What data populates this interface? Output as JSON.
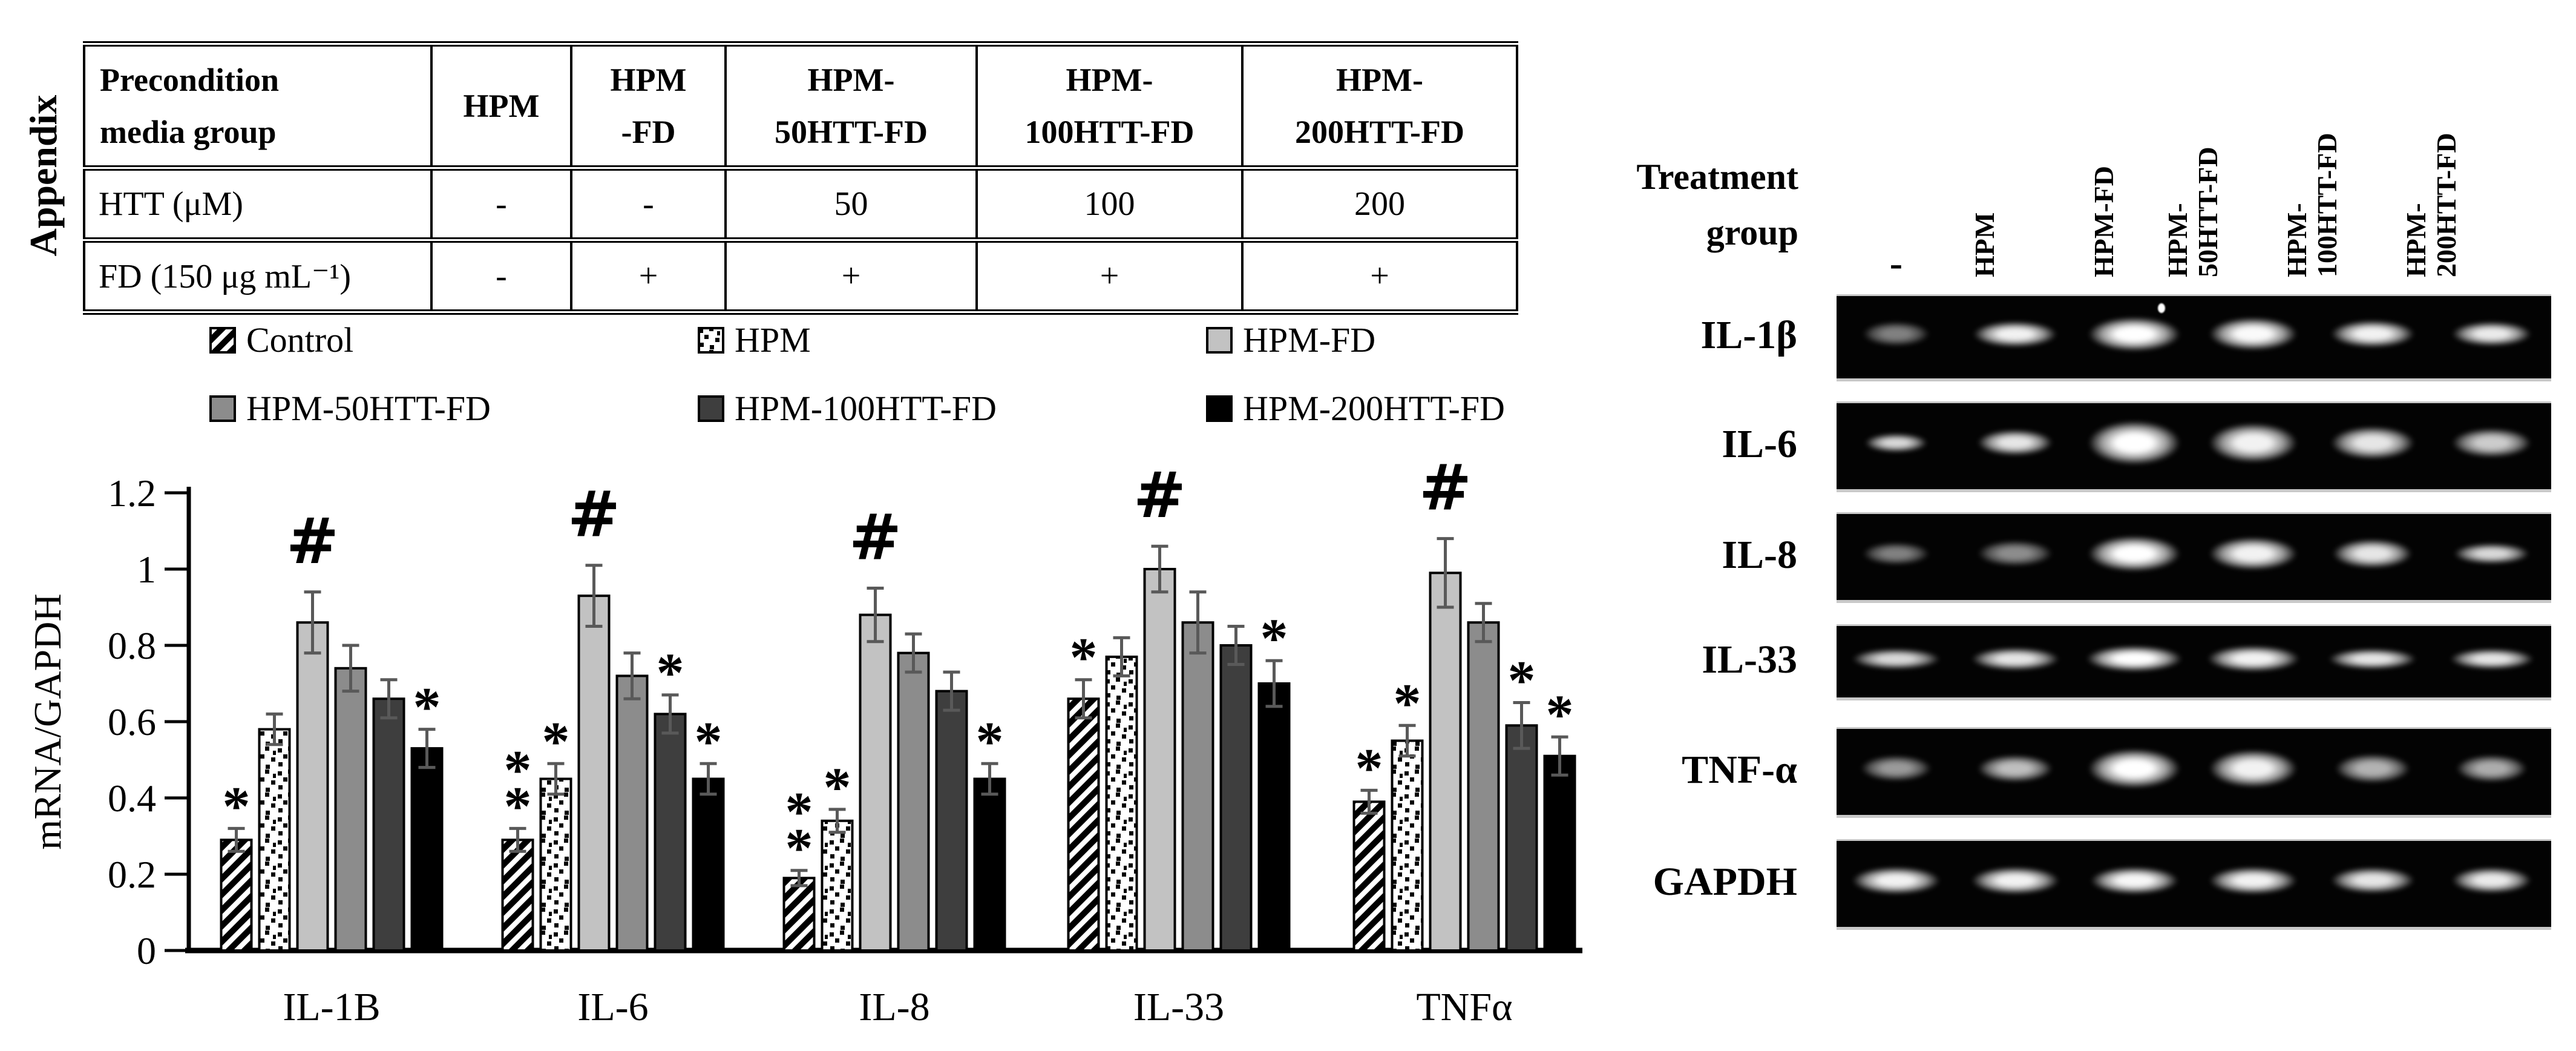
{
  "figure": {
    "appendix_label": "Appendix"
  },
  "table": {
    "corner": [
      "Precondition",
      "media group"
    ],
    "col_headers": [
      [
        "HPM"
      ],
      [
        "HPM",
        "-FD"
      ],
      [
        "HPM-",
        "50HTT-FD"
      ],
      [
        "HPM-",
        "100HTT-FD"
      ],
      [
        "HPM-",
        "200HTT-FD"
      ]
    ],
    "rows": [
      {
        "label": "HTT (μM)",
        "values": [
          "-",
          "-",
          "50",
          "100",
          "200"
        ]
      },
      {
        "label": "FD (150 μg mL⁻¹)",
        "values": [
          "-",
          "+",
          "+",
          "+",
          "+"
        ]
      }
    ]
  },
  "chart_data": {
    "type": "bar",
    "title": "",
    "xlabel": "",
    "ylabel": "mRNA/GAPDH",
    "ylim": [
      0,
      1.2
    ],
    "yticks": [
      0,
      0.2,
      0.4,
      0.6,
      0.8,
      1,
      1.2
    ],
    "grid": false,
    "legend_position": "top",
    "colors": {
      "error_bar": "#595959",
      "bar_outline": "#000000"
    },
    "categories": [
      "IL-1B",
      "IL-6",
      "IL-8",
      "IL-33",
      "TNFα"
    ],
    "series": [
      {
        "name": "Control",
        "fill": "hatch",
        "values": [
          0.29,
          0.29,
          0.19,
          0.66,
          0.39
        ],
        "errors": [
          0.03,
          0.03,
          0.02,
          0.05,
          0.03
        ],
        "annotations": [
          "*",
          "**",
          "**",
          "*",
          "*"
        ]
      },
      {
        "name": "HPM",
        "fill": "dots",
        "values": [
          0.58,
          0.45,
          0.34,
          0.77,
          0.55
        ],
        "errors": [
          0.04,
          0.04,
          0.03,
          0.05,
          0.04
        ],
        "annotations": [
          "",
          "*",
          "*",
          "",
          "*"
        ]
      },
      {
        "name": "HPM-FD",
        "fill": "#c2c2c2",
        "values": [
          0.86,
          0.93,
          0.88,
          1.0,
          0.99
        ],
        "errors": [
          0.08,
          0.08,
          0.07,
          0.06,
          0.09
        ],
        "annotations": [
          "#",
          "#",
          "#",
          "#",
          "#"
        ]
      },
      {
        "name": "HPM-50HTT-FD",
        "fill": "#8c8c8c",
        "values": [
          0.74,
          0.72,
          0.78,
          0.86,
          0.86
        ],
        "errors": [
          0.06,
          0.06,
          0.05,
          0.08,
          0.05
        ],
        "annotations": [
          "",
          "",
          "",
          "",
          ""
        ]
      },
      {
        "name": "HPM-100HTT-FD",
        "fill": "#3e3e3e",
        "values": [
          0.66,
          0.62,
          0.68,
          0.8,
          0.59
        ],
        "errors": [
          0.05,
          0.05,
          0.05,
          0.05,
          0.06
        ],
        "annotations": [
          "",
          "*",
          "",
          "",
          "*"
        ]
      },
      {
        "name": "HPM-200HTT-FD",
        "fill": "#000000",
        "values": [
          0.53,
          0.45,
          0.45,
          0.7,
          0.51
        ],
        "errors": [
          0.05,
          0.04,
          0.04,
          0.06,
          0.05
        ],
        "annotations": [
          "*",
          "*",
          "*",
          "*",
          "*"
        ]
      }
    ]
  },
  "gel": {
    "treatment_group_label": [
      "Treatment",
      "group"
    ],
    "lane_labels": [
      [
        "-"
      ],
      [
        "HPM"
      ],
      [
        "HPM-FD"
      ],
      [
        "HPM-",
        "50HTT-FD"
      ],
      [
        "HPM-",
        "100HTT-FD"
      ],
      [
        "HPM-",
        "200HTT-FD"
      ]
    ],
    "rows": [
      {
        "label": "IL-1β",
        "bands": [
          [
            0.8,
            0.7,
            0.5
          ],
          [
            1.0,
            0.75,
            0.95
          ],
          [
            1.1,
            1.0,
            1.0
          ],
          [
            1.05,
            0.95,
            0.98
          ],
          [
            1.0,
            0.8,
            0.95
          ],
          [
            0.95,
            0.7,
            0.92
          ]
        ]
      },
      {
        "label": "IL-6",
        "bands": [
          [
            0.75,
            0.55,
            0.85
          ],
          [
            0.9,
            0.75,
            0.9
          ],
          [
            1.1,
            1.3,
            1.0
          ],
          [
            1.05,
            1.15,
            0.95
          ],
          [
            1.0,
            0.95,
            0.9
          ],
          [
            0.95,
            0.85,
            0.8
          ]
        ]
      },
      {
        "label": "IL-8",
        "bands": [
          [
            0.8,
            0.65,
            0.5
          ],
          [
            0.9,
            0.75,
            0.55
          ],
          [
            1.1,
            1.05,
            1.0
          ],
          [
            1.05,
            0.95,
            0.95
          ],
          [
            0.95,
            0.85,
            0.9
          ],
          [
            0.9,
            0.6,
            0.85
          ]
        ]
      },
      {
        "label": "IL-33",
        "bands": [
          [
            1.05,
            0.6,
            0.85
          ],
          [
            1.05,
            0.65,
            0.9
          ],
          [
            1.15,
            0.75,
            1.0
          ],
          [
            1.1,
            0.75,
            0.95
          ],
          [
            1.05,
            0.6,
            0.9
          ],
          [
            1.0,
            0.6,
            0.9
          ]
        ]
      },
      {
        "label": "TNF-α",
        "bands": [
          [
            0.85,
            0.75,
            0.6
          ],
          [
            0.9,
            0.8,
            0.75
          ],
          [
            1.1,
            1.15,
            1.0
          ],
          [
            1.05,
            1.1,
            0.95
          ],
          [
            0.9,
            0.85,
            0.7
          ],
          [
            0.85,
            0.8,
            0.68
          ]
        ]
      },
      {
        "label": "GAPDH",
        "bands": [
          [
            1.05,
            0.8,
            0.95
          ],
          [
            1.05,
            0.8,
            0.95
          ],
          [
            1.05,
            0.8,
            0.97
          ],
          [
            1.05,
            0.8,
            0.95
          ],
          [
            1.0,
            0.75,
            0.9
          ],
          [
            0.95,
            0.75,
            0.92
          ]
        ]
      }
    ]
  }
}
